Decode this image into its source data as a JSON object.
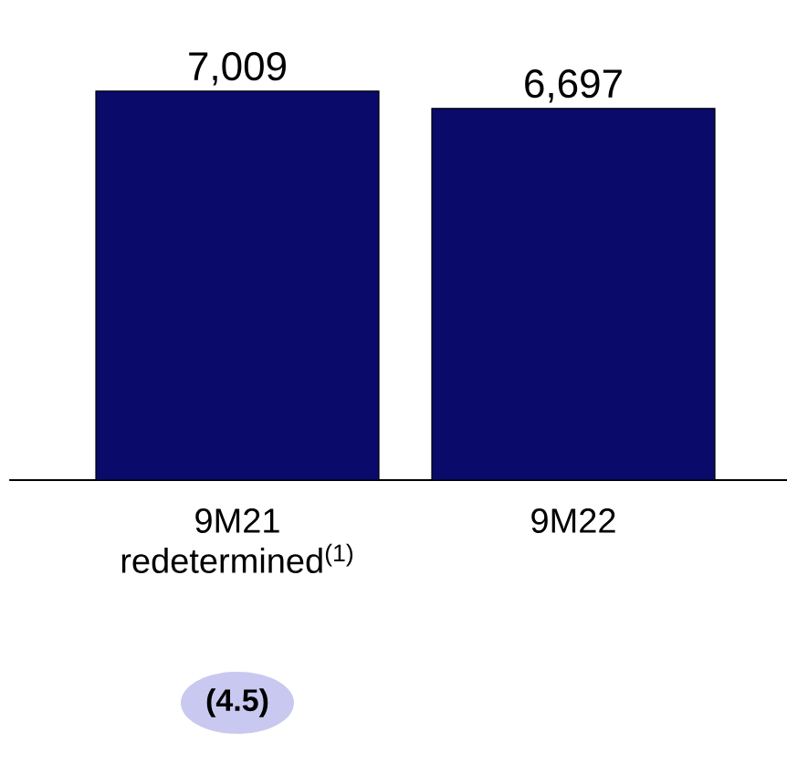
{
  "chart_data": {
    "type": "bar",
    "categories": [
      "9M21 redetermined$^{(1)}$",
      "9M22"
    ],
    "values": [
      7009,
      6697
    ],
    "color": "#0a0a6b",
    "value_labels": [
      "7,009",
      "6,697"
    ],
    "annotations": [
      "(4.5)"
    ]
  }
}
